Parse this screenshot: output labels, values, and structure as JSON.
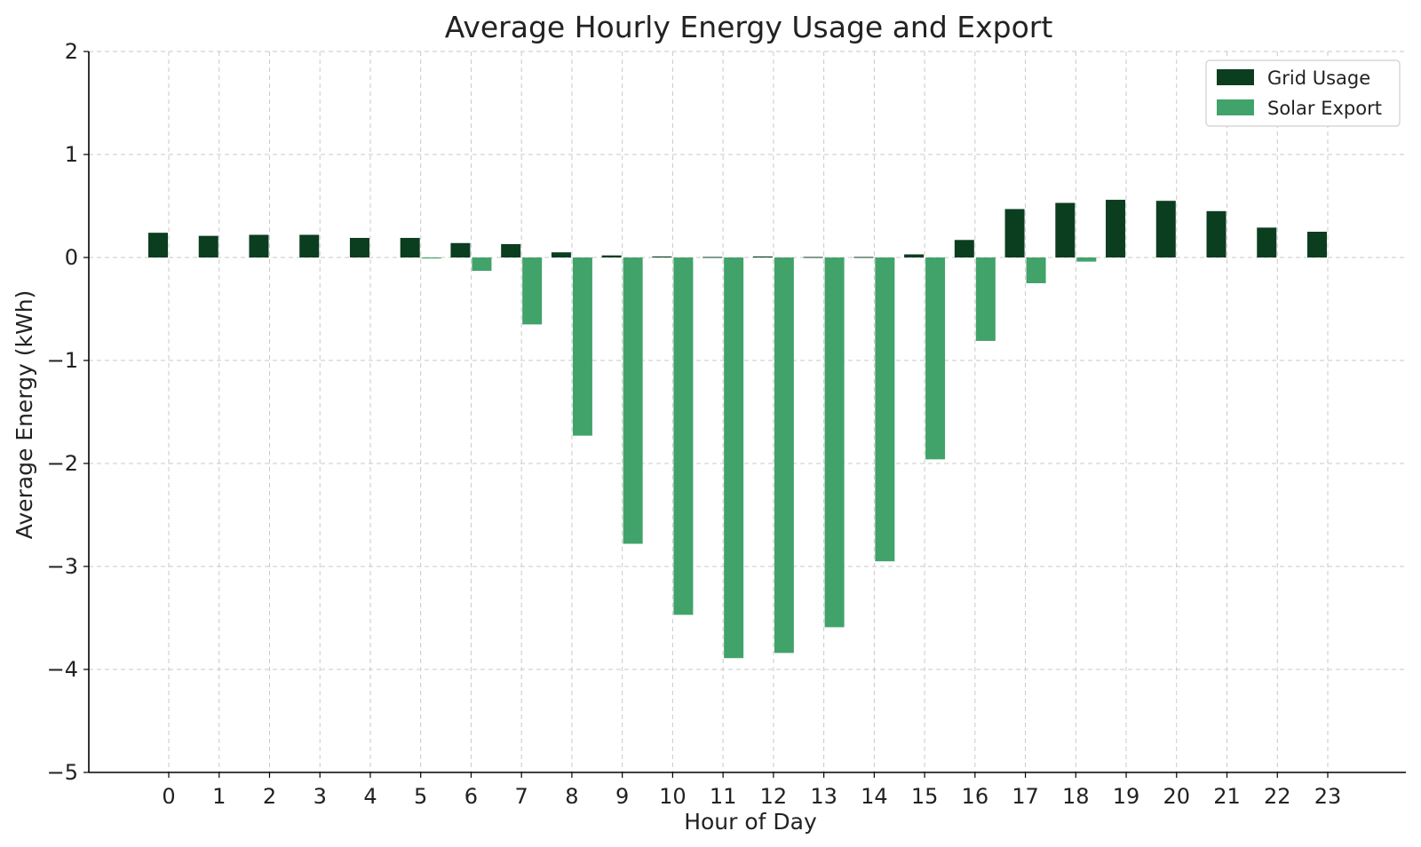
{
  "chart_data": {
    "type": "bar",
    "title": "Average Hourly Energy Usage and Export",
    "xlabel": "Hour of Day",
    "ylabel": "Average Energy (kWh)",
    "categories": [
      "0",
      "1",
      "2",
      "3",
      "4",
      "5",
      "6",
      "7",
      "8",
      "9",
      "10",
      "11",
      "12",
      "13",
      "14",
      "15",
      "16",
      "17",
      "18",
      "19",
      "20",
      "21",
      "22",
      "23"
    ],
    "ylim": [
      -5,
      2
    ],
    "yticks": [
      "2",
      "1",
      "0",
      "−1",
      "−2",
      "−3",
      "−4",
      "−5"
    ],
    "ytick_values": [
      2,
      1,
      0,
      -1,
      -2,
      -3,
      -4,
      -5
    ],
    "grid": true,
    "legend_position": "top-right",
    "series": [
      {
        "name": "Grid Usage",
        "color": "#0b3d1f",
        "values": [
          0.24,
          0.21,
          0.22,
          0.22,
          0.19,
          0.19,
          0.14,
          0.13,
          0.05,
          0.02,
          0.01,
          0.005,
          0.01,
          0.005,
          0.005,
          0.03,
          0.17,
          0.47,
          0.53,
          0.56,
          0.55,
          0.45,
          0.29,
          0.25
        ]
      },
      {
        "name": "Solar Export",
        "color": "#41a36a",
        "values": [
          0.0,
          0.0,
          0.0,
          0.0,
          0.0,
          -0.01,
          -0.13,
          -0.65,
          -1.73,
          -2.78,
          -3.47,
          -3.89,
          -3.84,
          -3.59,
          -2.95,
          -1.96,
          -0.81,
          -0.25,
          -0.04,
          0.0,
          0.0,
          0.0,
          0.0,
          0.0
        ]
      }
    ]
  }
}
